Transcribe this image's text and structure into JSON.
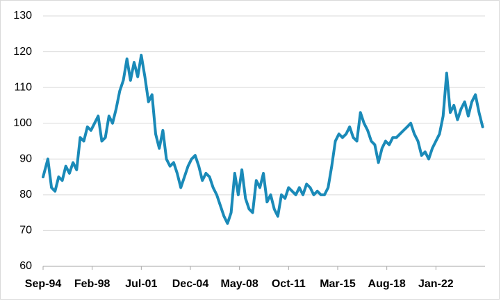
{
  "chart_data": {
    "type": "line",
    "title": "",
    "xlabel": "",
    "ylabel": "",
    "ylim": [
      60,
      130
    ],
    "yticks": [
      60,
      70,
      80,
      90,
      100,
      110,
      120,
      130
    ],
    "xlim": [
      "1994-09",
      "2025-06"
    ],
    "xticks": [
      "Sep-94",
      "Feb-98",
      "Jul-01",
      "Dec-04",
      "May-08",
      "Oct-11",
      "Mar-15",
      "Aug-18",
      "Jan-22"
    ],
    "grid": true,
    "line_color": "#1a8ab8",
    "series": [
      {
        "x": [
          "1994-09",
          "1995-01",
          "1995-04",
          "1995-07",
          "1995-10",
          "1996-01",
          "1996-04",
          "1996-07",
          "1996-10",
          "1997-01",
          "1997-04",
          "1997-07",
          "1997-10",
          "1998-01",
          "1998-04",
          "1998-07",
          "1998-10",
          "1999-01",
          "1999-04",
          "1999-07",
          "1999-10",
          "2000-01",
          "2000-04",
          "2000-07",
          "2000-10",
          "2001-01",
          "2001-04",
          "2001-07",
          "2001-10",
          "2002-01",
          "2002-04",
          "2002-07",
          "2002-10",
          "2003-01",
          "2003-04",
          "2003-07",
          "2003-10",
          "2004-01",
          "2004-04",
          "2004-07",
          "2004-10",
          "2005-01",
          "2005-04",
          "2005-07",
          "2005-10",
          "2006-01",
          "2006-04",
          "2006-07",
          "2006-10",
          "2007-01",
          "2007-04",
          "2007-07",
          "2007-10",
          "2008-01",
          "2008-04",
          "2008-07",
          "2008-10",
          "2009-01",
          "2009-04",
          "2009-07",
          "2009-10",
          "2010-01",
          "2010-04",
          "2010-07",
          "2010-10",
          "2011-01",
          "2011-04",
          "2011-07",
          "2011-10",
          "2012-01",
          "2012-04",
          "2012-07",
          "2012-10",
          "2013-01",
          "2013-04",
          "2013-07",
          "2013-10",
          "2014-01",
          "2014-04",
          "2014-07",
          "2014-10",
          "2015-01",
          "2015-04",
          "2015-07",
          "2015-10",
          "2016-01",
          "2016-04",
          "2016-07",
          "2016-10",
          "2017-01",
          "2017-04",
          "2017-07",
          "2017-10",
          "2018-01",
          "2018-04",
          "2018-07",
          "2018-10",
          "2019-01",
          "2019-04",
          "2019-07",
          "2019-10",
          "2020-01",
          "2020-04",
          "2020-07",
          "2020-10",
          "2021-01",
          "2021-04",
          "2021-07",
          "2021-10",
          "2022-01",
          "2022-04",
          "2022-07",
          "2022-10",
          "2023-01",
          "2023-04",
          "2023-07",
          "2023-10",
          "2024-01",
          "2024-04",
          "2024-07",
          "2024-10",
          "2025-01",
          "2025-04"
        ],
        "values": [
          85,
          90,
          82,
          81,
          85,
          84,
          88,
          86,
          89,
          87,
          96,
          95,
          99,
          98,
          100,
          102,
          95,
          96,
          102,
          100,
          104,
          109,
          112,
          118,
          112,
          117,
          113,
          119,
          113,
          106,
          108,
          97,
          93,
          98,
          90,
          88,
          89,
          86,
          82,
          85,
          88,
          90,
          91,
          88,
          84,
          86,
          85,
          82,
          80,
          77,
          74,
          72,
          75,
          86,
          80,
          87,
          79,
          76,
          75,
          84,
          82,
          86,
          78,
          80,
          76,
          74,
          80,
          79,
          82,
          81,
          80,
          82,
          80,
          83,
          82,
          80,
          81,
          80,
          80,
          82,
          88,
          95,
          97,
          96,
          97,
          99,
          96,
          95,
          103,
          100,
          98,
          95,
          94,
          89,
          93,
          95,
          94,
          96,
          96,
          97,
          98,
          99,
          100,
          97,
          95,
          91,
          92,
          90,
          93,
          95,
          97,
          102,
          114,
          103,
          105,
          101,
          104,
          106,
          102,
          106,
          108,
          103,
          99
        ]
      }
    ]
  }
}
